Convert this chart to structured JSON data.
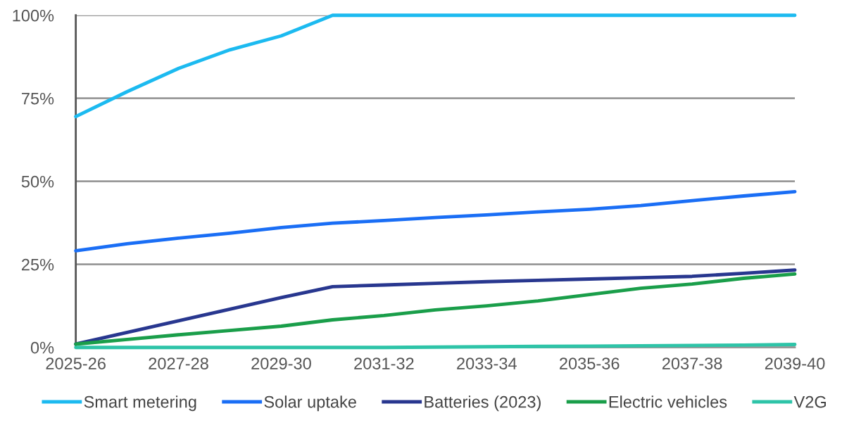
{
  "chart_data": {
    "type": "line",
    "categories": [
      "2025-26",
      null,
      "2027-28",
      null,
      "2029-30",
      null,
      "2031-32",
      null,
      "2033-34",
      null,
      "2035-36",
      null,
      "2037-38",
      null,
      "2039-40"
    ],
    "series": [
      {
        "name": "Smart metering",
        "color": "#1cbaf0",
        "values": [
          69.5,
          77,
          84,
          89.6,
          93.8,
          100,
          100,
          100,
          100,
          100,
          100,
          100,
          100,
          100,
          100
        ]
      },
      {
        "name": "Solar uptake",
        "color": "#1a6ef5",
        "values": [
          29.1,
          31.2,
          32.9,
          34.4,
          36.1,
          37.4,
          38.2,
          39.1,
          39.9,
          40.8,
          41.6,
          42.7,
          44.2,
          45.6,
          46.9
        ]
      },
      {
        "name": "Batteries (2023)",
        "color": "#28378f",
        "values": [
          1,
          4.5,
          8,
          11.5,
          15,
          18.3,
          18.8,
          19.3,
          19.8,
          20.2,
          20.6,
          21.0,
          21.4,
          22.3,
          23.3
        ]
      },
      {
        "name": "Electric vehicles",
        "color": "#1a9e4a",
        "values": [
          1,
          2.4,
          3.8,
          5.1,
          6.4,
          8.3,
          9.6,
          11.3,
          12.5,
          14,
          15.9,
          17.8,
          19.1,
          20.8,
          22.1
        ]
      },
      {
        "name": "V2G",
        "color": "#2ec4a8",
        "values": [
          0,
          0,
          0,
          0,
          0,
          0,
          0,
          0.1,
          0.2,
          0.3,
          0.4,
          0.5,
          0.6,
          0.7,
          0.9
        ]
      }
    ],
    "ylim": [
      0,
      100
    ],
    "yticks": [
      {
        "value": 0,
        "label": "0%"
      },
      {
        "value": 25,
        "label": "25%"
      },
      {
        "value": 50,
        "label": "50%"
      },
      {
        "value": 75,
        "label": "75%"
      },
      {
        "value": 100,
        "label": "100%"
      }
    ],
    "grid": "y",
    "legend": "bottom",
    "marker": "none",
    "line_style": "solid"
  }
}
